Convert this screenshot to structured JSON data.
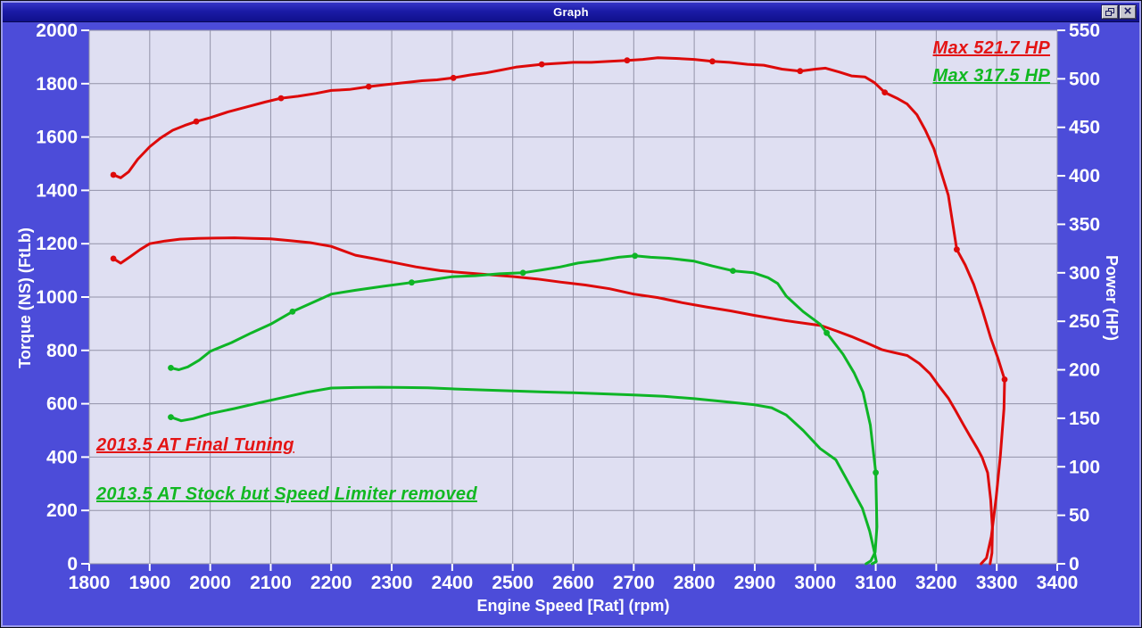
{
  "window": {
    "title": "Graph",
    "close_glyph": "×"
  },
  "colors": {
    "client_bg": "#4c4cd9",
    "plot_bg": "#dfdff2",
    "grid": "#9393a8",
    "tick": "#ffffff",
    "red_series": "#dd0a0a",
    "green_series": "#0eb526",
    "red_text": "#e41414",
    "green_text": "#12b822"
  },
  "chart_data": {
    "type": "line",
    "x_axis": {
      "label": "Engine Speed [Rat] (rpm)",
      "min": 1800,
      "max": 3400,
      "tick_step": 100
    },
    "y_left": {
      "label": "Torque (NS) (FtLb)",
      "min": 0,
      "max": 2000,
      "tick_step": 200
    },
    "y_right": {
      "label": "Power (HP)",
      "min": 0,
      "max": 550,
      "tick_step": 50
    },
    "grid": "on",
    "annotations": {
      "max_red": "Max 521.7 HP",
      "max_green": "Max 317.5 HP",
      "note_red": "2013.5 AT Final Tuning",
      "note_green": "2013.5 AT Stock but Speed Limiter removed"
    },
    "series": [
      {
        "name": "final-tuning-power",
        "legend": "2013.5 AT Final Tuning",
        "color": "#dd0a0a",
        "axis": "right",
        "max_value_hp": 521.7,
        "points": [
          [
            1840,
            401
          ],
          [
            1852,
            398
          ],
          [
            1865,
            404
          ],
          [
            1880,
            417
          ],
          [
            1900,
            430
          ],
          [
            1918,
            439
          ],
          [
            1938,
            447
          ],
          [
            1958,
            452
          ],
          [
            1977,
            456
          ],
          [
            2000,
            460
          ],
          [
            2030,
            466
          ],
          [
            2060,
            471
          ],
          [
            2090,
            476
          ],
          [
            2117,
            480
          ],
          [
            2145,
            482
          ],
          [
            2175,
            485
          ],
          [
            2200,
            488
          ],
          [
            2230,
            489
          ],
          [
            2262,
            492
          ],
          [
            2290,
            494
          ],
          [
            2320,
            496
          ],
          [
            2350,
            498
          ],
          [
            2375,
            499
          ],
          [
            2402,
            501
          ],
          [
            2430,
            504
          ],
          [
            2455,
            506
          ],
          [
            2480,
            509
          ],
          [
            2505,
            512
          ],
          [
            2548,
            515
          ],
          [
            2575,
            516
          ],
          [
            2600,
            517
          ],
          [
            2630,
            517
          ],
          [
            2660,
            518
          ],
          [
            2689,
            519
          ],
          [
            2715,
            520
          ],
          [
            2740,
            521.7
          ],
          [
            2770,
            521
          ],
          [
            2800,
            520
          ],
          [
            2830,
            518
          ],
          [
            2858,
            517
          ],
          [
            2888,
            515
          ],
          [
            2915,
            514
          ],
          [
            2945,
            510
          ],
          [
            2975,
            508
          ],
          [
            3000,
            510
          ],
          [
            3017,
            511
          ],
          [
            3040,
            507
          ],
          [
            3060,
            503
          ],
          [
            3082,
            502
          ],
          [
            3098,
            496
          ],
          [
            3115,
            486
          ],
          [
            3135,
            480
          ],
          [
            3152,
            474
          ],
          [
            3168,
            463
          ],
          [
            3182,
            447
          ],
          [
            3196,
            428
          ],
          [
            3208,
            404
          ],
          [
            3220,
            380
          ],
          [
            3234,
            324
          ],
          [
            3248,
            308
          ],
          [
            3262,
            288
          ],
          [
            3276,
            262
          ],
          [
            3290,
            233
          ],
          [
            3302,
            212
          ],
          [
            3313,
            190
          ],
          [
            3312,
            160
          ],
          [
            3306,
            112
          ],
          [
            3299,
            68
          ],
          [
            3291,
            28
          ],
          [
            3283,
            6
          ],
          [
            3274,
            0
          ]
        ],
        "markers": [
          [
            1840,
            401
          ],
          [
            1977,
            456
          ],
          [
            2117,
            480
          ],
          [
            2262,
            492
          ],
          [
            2402,
            501
          ],
          [
            2548,
            515
          ],
          [
            2689,
            519
          ],
          [
            2830,
            518
          ],
          [
            2975,
            508
          ],
          [
            3115,
            486
          ],
          [
            3234,
            324
          ],
          [
            3313,
            190
          ]
        ]
      },
      {
        "name": "final-tuning-torque",
        "legend": "2013.5 AT Final Tuning",
        "color": "#dd0a0a",
        "axis": "left",
        "peak_torque_ftlb": 1222,
        "points": [
          [
            1840,
            1144
          ],
          [
            1852,
            1127
          ],
          [
            1868,
            1152
          ],
          [
            1884,
            1178
          ],
          [
            1900,
            1200
          ],
          [
            1925,
            1210
          ],
          [
            1950,
            1217
          ],
          [
            1980,
            1220
          ],
          [
            2010,
            1221
          ],
          [
            2040,
            1222
          ],
          [
            2070,
            1220
          ],
          [
            2100,
            1218
          ],
          [
            2130,
            1212
          ],
          [
            2165,
            1204
          ],
          [
            2200,
            1190
          ],
          [
            2240,
            1157
          ],
          [
            2270,
            1144
          ],
          [
            2300,
            1131
          ],
          [
            2340,
            1113
          ],
          [
            2380,
            1099
          ],
          [
            2420,
            1091
          ],
          [
            2460,
            1084
          ],
          [
            2500,
            1077
          ],
          [
            2540,
            1068
          ],
          [
            2580,
            1056
          ],
          [
            2620,
            1045
          ],
          [
            2660,
            1031
          ],
          [
            2700,
            1011
          ],
          [
            2740,
            998
          ],
          [
            2780,
            979
          ],
          [
            2820,
            963
          ],
          [
            2860,
            948
          ],
          [
            2900,
            931
          ],
          [
            2950,
            912
          ],
          [
            3010,
            893
          ],
          [
            3035,
            873
          ],
          [
            3060,
            852
          ],
          [
            3085,
            828
          ],
          [
            3110,
            803
          ],
          [
            3130,
            792
          ],
          [
            3152,
            781
          ],
          [
            3172,
            751
          ],
          [
            3190,
            712
          ],
          [
            3205,
            665
          ],
          [
            3220,
            621
          ],
          [
            3232,
            574
          ],
          [
            3245,
            521
          ],
          [
            3257,
            474
          ],
          [
            3268,
            432
          ],
          [
            3276,
            398
          ],
          [
            3285,
            341
          ],
          [
            3290,
            240
          ],
          [
            3293,
            130
          ],
          [
            3292,
            40
          ],
          [
            3289,
            0
          ]
        ],
        "markers": [
          [
            1840,
            1144
          ]
        ]
      },
      {
        "name": "stock-power",
        "legend": "2013.5 AT Stock but Speed Limiter removed",
        "color": "#0eb526",
        "axis": "right",
        "max_value_hp": 317.5,
        "points": [
          [
            1935,
            202
          ],
          [
            1948,
            200
          ],
          [
            1963,
            203
          ],
          [
            1982,
            210
          ],
          [
            2000,
            219
          ],
          [
            2035,
            228
          ],
          [
            2068,
            238
          ],
          [
            2100,
            247
          ],
          [
            2136,
            260
          ],
          [
            2168,
            269
          ],
          [
            2200,
            278
          ],
          [
            2240,
            282
          ],
          [
            2285,
            286
          ],
          [
            2333,
            290
          ],
          [
            2368,
            293
          ],
          [
            2400,
            296
          ],
          [
            2438,
            297
          ],
          [
            2478,
            299
          ],
          [
            2517,
            300
          ],
          [
            2548,
            303
          ],
          [
            2578,
            306
          ],
          [
            2608,
            310
          ],
          [
            2645,
            313
          ],
          [
            2675,
            316
          ],
          [
            2702,
            317.5
          ],
          [
            2728,
            316
          ],
          [
            2758,
            315
          ],
          [
            2800,
            312
          ],
          [
            2830,
            307
          ],
          [
            2864,
            302
          ],
          [
            2898,
            300
          ],
          [
            2922,
            295
          ],
          [
            2938,
            289
          ],
          [
            2952,
            276
          ],
          [
            2980,
            260
          ],
          [
            3008,
            247
          ],
          [
            3019,
            238
          ],
          [
            3046,
            216
          ],
          [
            3064,
            197
          ],
          [
            3079,
            177
          ],
          [
            3091,
            143
          ],
          [
            3100,
            94
          ],
          [
            3102,
            38
          ],
          [
            3099,
            12
          ],
          [
            3092,
            3
          ],
          [
            3084,
            0
          ]
        ],
        "markers": [
          [
            1935,
            202
          ],
          [
            2136,
            260
          ],
          [
            2333,
            290
          ],
          [
            2517,
            300
          ],
          [
            2702,
            317.5
          ],
          [
            2864,
            302
          ],
          [
            3019,
            238
          ],
          [
            3100,
            94
          ]
        ]
      },
      {
        "name": "stock-torque",
        "legend": "2013.5 AT Stock but Speed Limiter removed",
        "color": "#0eb526",
        "axis": "left",
        "peak_torque_ftlb": 662,
        "points": [
          [
            1935,
            550
          ],
          [
            1952,
            536
          ],
          [
            1972,
            544
          ],
          [
            2000,
            563
          ],
          [
            2040,
            582
          ],
          [
            2080,
            603
          ],
          [
            2120,
            623
          ],
          [
            2160,
            643
          ],
          [
            2200,
            659
          ],
          [
            2240,
            661
          ],
          [
            2280,
            662
          ],
          [
            2320,
            661
          ],
          [
            2360,
            660
          ],
          [
            2400,
            656
          ],
          [
            2450,
            652
          ],
          [
            2500,
            648
          ],
          [
            2550,
            644
          ],
          [
            2600,
            641
          ],
          [
            2650,
            637
          ],
          [
            2700,
            633
          ],
          [
            2750,
            628
          ],
          [
            2800,
            619
          ],
          [
            2850,
            608
          ],
          [
            2900,
            596
          ],
          [
            2928,
            585
          ],
          [
            2952,
            558
          ],
          [
            2980,
            500
          ],
          [
            3008,
            432
          ],
          [
            3034,
            390
          ],
          [
            3056,
            300
          ],
          [
            3078,
            208
          ],
          [
            3090,
            122
          ],
          [
            3098,
            42
          ],
          [
            3101,
            8
          ],
          [
            3094,
            0
          ]
        ],
        "markers": [
          [
            1935,
            550
          ]
        ]
      }
    ]
  }
}
